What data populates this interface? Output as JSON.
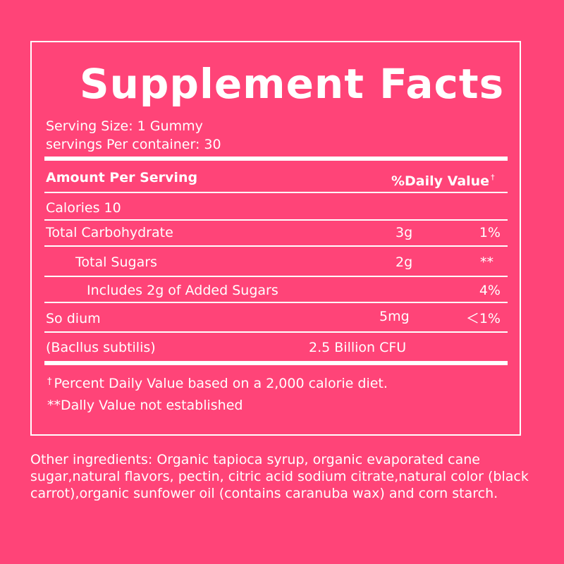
{
  "title": "Supplement Facts",
  "serving_size": "Serving Size: 1 Gummy",
  "servings_per_container": "servings Per container: 30",
  "header": {
    "amount": "Amount Per Serving",
    "daily_value": "%Daily Value",
    "daily_value_mark": "†"
  },
  "rows": [
    {
      "name": "Calories 10",
      "amount": "",
      "dv": ""
    },
    {
      "name": "Total Carbohydrate",
      "amount": "3g",
      "dv": "1%"
    },
    {
      "name": "Total Sugars",
      "amount": "2g",
      "dv": "**"
    },
    {
      "name": "Includes 2g of Added Sugars",
      "amount": "",
      "dv": "4%"
    },
    {
      "name": "So dium",
      "amount": "5mg",
      "dv": "＜1%"
    },
    {
      "name": "(Bacllus subtilis)",
      "amount": "2.5 Billion CFU",
      "dv": ""
    }
  ],
  "footnotes": {
    "dagger": "†",
    "percent_dv": "Percent Daily Value based on a 2,000 calorie diet.",
    "not_established": "**Dally Value not established"
  },
  "other_ingredients": "Other ingredients: Organic tapioca syrup, organic evaporated cane sugar,natural flavors, pectin, citric acid sodium citrate,natural color (black carrot),organic sunfower oil (contains caranuba wax) and corn starch.",
  "colors": {
    "background": "#ff4478",
    "text": "#ffffff"
  }
}
